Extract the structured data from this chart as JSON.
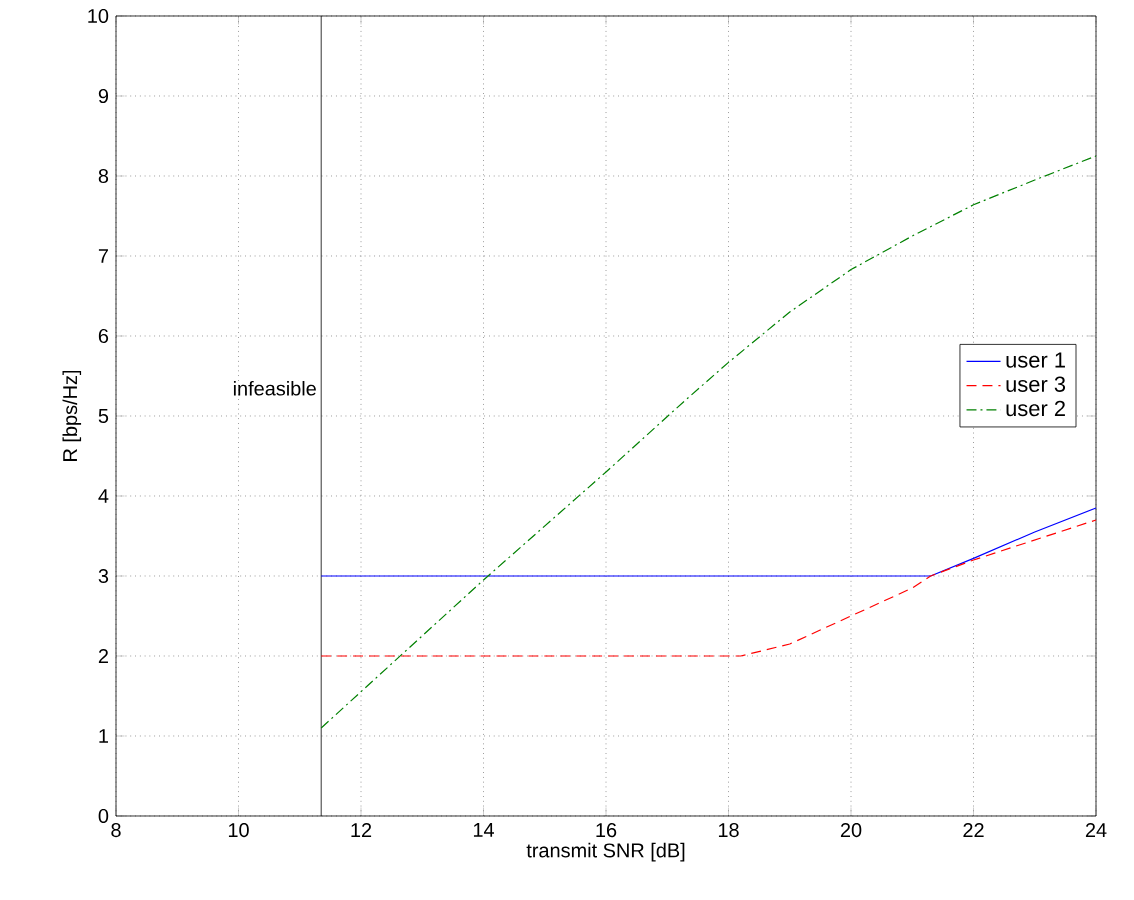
{
  "chart_data": {
    "type": "line",
    "xlabel": "transmit SNR [dB]",
    "ylabel": "R [bps/Hz]",
    "xlim": [
      8,
      24
    ],
    "ylim": [
      0,
      10
    ],
    "xticks": [
      8,
      10,
      12,
      14,
      16,
      18,
      20,
      22,
      24
    ],
    "yticks": [
      0,
      1,
      2,
      3,
      4,
      5,
      6,
      7,
      8,
      9,
      10
    ],
    "grid": true,
    "legend": "right",
    "ref_lines": [
      {
        "axis": "x",
        "value": 11.35,
        "label": "infeasible",
        "color": "#000000"
      }
    ],
    "series": [
      {
        "name": "user 1",
        "color": "#0000ff",
        "line_style": "solid",
        "x": [
          11.35,
          21.3,
          22,
          23,
          24
        ],
        "values": [
          3,
          3,
          3.22,
          3.55,
          3.85
        ]
      },
      {
        "name": "user 3",
        "color": "#ff0000",
        "line_style": "dashed",
        "x": [
          11.35,
          18.2,
          19,
          20,
          21,
          21.3,
          22,
          23,
          24
        ],
        "values": [
          2,
          2,
          2.15,
          2.5,
          2.85,
          3,
          3.2,
          3.45,
          3.7
        ]
      },
      {
        "name": "user 2",
        "color": "#008000",
        "line_style": "dashdot",
        "x": [
          11.35,
          14,
          16,
          17.3,
          18,
          19,
          20,
          21,
          22,
          23,
          24
        ],
        "values": [
          1.1,
          2.95,
          4.3,
          5.2,
          5.67,
          6.3,
          6.83,
          7.25,
          7.64,
          7.95,
          8.25
        ]
      }
    ]
  }
}
